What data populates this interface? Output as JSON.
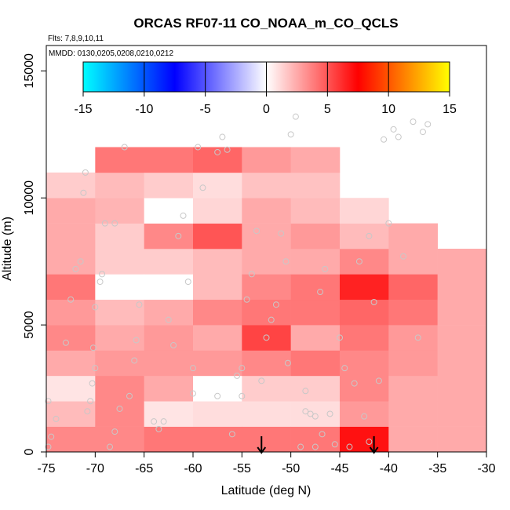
{
  "title": "ORCAS RF07-11 CO_NOAA_m_CO_QCLS",
  "flights_note": "Flts: 7,8,9,10,11",
  "dates_note": "MMDD: 0130,0205,0208,0210,0212",
  "colors": {
    "point": "#c8c8c8",
    "arrow": "#000000"
  },
  "chart_data": {
    "type": "heatmap",
    "title": "ORCAS RF07-11 CO_NOAA_m_CO_QCLS",
    "xlabel": "Latitude (deg N)",
    "ylabel": "Altitude (m)",
    "xlim": [
      -75,
      -30
    ],
    "ylim": [
      0,
      16000
    ],
    "x_ticks": [
      -75,
      -70,
      -65,
      -60,
      -55,
      -50,
      -45,
      -40,
      -35,
      -30
    ],
    "y_ticks": [
      0,
      5000,
      10000,
      15000
    ],
    "colorbar": {
      "min": -15,
      "max": 15,
      "ticks": [
        -15,
        -10,
        -5,
        0,
        5,
        10,
        15
      ],
      "colors": [
        "#00ffff",
        "#0000ff",
        "#ffffff",
        "#ff0000",
        "#ffff00"
      ]
    },
    "grid": false,
    "lat_bins": [
      -75,
      -70,
      -65,
      -60,
      -55,
      -50,
      -45,
      -40,
      -35
    ],
    "alt_bin_size": 1000,
    "cells": [
      [
        0,
        0,
        3.5
      ],
      [
        0,
        1,
        2
      ],
      [
        0,
        2,
        0.8
      ],
      [
        0,
        3,
        2.5
      ],
      [
        0,
        4,
        3.5
      ],
      [
        0,
        5,
        3
      ],
      [
        0,
        6,
        4
      ],
      [
        0,
        7,
        2.5
      ],
      [
        0,
        8,
        2.5
      ],
      [
        0,
        9,
        2.5
      ],
      [
        0,
        10,
        1.5
      ],
      [
        1,
        0,
        3.5
      ],
      [
        1,
        1,
        3.5
      ],
      [
        1,
        2,
        3.5
      ],
      [
        1,
        3,
        3
      ],
      [
        1,
        4,
        2.5
      ],
      [
        1,
        5,
        2
      ],
      [
        1,
        6,
        0
      ],
      [
        1,
        7,
        1.5
      ],
      [
        1,
        8,
        1.5
      ],
      [
        1,
        9,
        2.2
      ],
      [
        1,
        10,
        2
      ],
      [
        1,
        11,
        4
      ],
      [
        2,
        0,
        4
      ],
      [
        2,
        1,
        0.8
      ],
      [
        2,
        2,
        2.5
      ],
      [
        2,
        3,
        3
      ],
      [
        2,
        4,
        3
      ],
      [
        2,
        5,
        2.5
      ],
      [
        2,
        6,
        0
      ],
      [
        2,
        7,
        1.5
      ],
      [
        2,
        8,
        3.5
      ],
      [
        2,
        9,
        0
      ],
      [
        2,
        10,
        1.5
      ],
      [
        2,
        11,
        4
      ],
      [
        3,
        0,
        4
      ],
      [
        3,
        1,
        1
      ],
      [
        3,
        2,
        0
      ],
      [
        3,
        3,
        3
      ],
      [
        3,
        4,
        2.5
      ],
      [
        3,
        5,
        3.5
      ],
      [
        3,
        6,
        2
      ],
      [
        3,
        7,
        2
      ],
      [
        3,
        8,
        5
      ],
      [
        3,
        9,
        1.2
      ],
      [
        3,
        10,
        1
      ],
      [
        3,
        11,
        4.5
      ],
      [
        4,
        0,
        4
      ],
      [
        4,
        1,
        1
      ],
      [
        4,
        2,
        1.5
      ],
      [
        4,
        3,
        3.5
      ],
      [
        4,
        4,
        5.5
      ],
      [
        4,
        5,
        4
      ],
      [
        4,
        6,
        3.5
      ],
      [
        4,
        7,
        2.5
      ],
      [
        4,
        8,
        2.5
      ],
      [
        4,
        9,
        2.5
      ],
      [
        4,
        10,
        1.8
      ],
      [
        4,
        11,
        3
      ],
      [
        5,
        0,
        4
      ],
      [
        5,
        1,
        1
      ],
      [
        5,
        2,
        1.5
      ],
      [
        5,
        3,
        4
      ],
      [
        5,
        4,
        2.5
      ],
      [
        5,
        5,
        4
      ],
      [
        5,
        6,
        4
      ],
      [
        5,
        7,
        2.5
      ],
      [
        5,
        8,
        3
      ],
      [
        5,
        9,
        2
      ],
      [
        5,
        10,
        1.8
      ],
      [
        5,
        11,
        2.5
      ],
      [
        6,
        0,
        7
      ],
      [
        6,
        1,
        3
      ],
      [
        6,
        2,
        3.5
      ],
      [
        6,
        3,
        3.5
      ],
      [
        6,
        4,
        4
      ],
      [
        6,
        5,
        4.5
      ],
      [
        6,
        6,
        6.5
      ],
      [
        6,
        7,
        3.5
      ],
      [
        6,
        8,
        2
      ],
      [
        6,
        9,
        1.2
      ],
      [
        7,
        0,
        2.5
      ],
      [
        7,
        1,
        2.5
      ],
      [
        7,
        2,
        2.5
      ],
      [
        7,
        3,
        3
      ],
      [
        7,
        4,
        3
      ],
      [
        7,
        5,
        4
      ],
      [
        7,
        6,
        4.5
      ],
      [
        7,
        7,
        2.5
      ],
      [
        7,
        8,
        2.5
      ],
      [
        8,
        0,
        2.5
      ],
      [
        8,
        1,
        2.5
      ],
      [
        8,
        2,
        2.5
      ],
      [
        8,
        3,
        2.5
      ],
      [
        8,
        4,
        2.5
      ],
      [
        8,
        5,
        2.5
      ],
      [
        8,
        6,
        2.5
      ],
      [
        8,
        7,
        2.5
      ]
    ],
    "points": [
      [
        -74.8,
        200
      ],
      [
        -74.5,
        600
      ],
      [
        -74,
        1300
      ],
      [
        -74.8,
        2000
      ],
      [
        -73,
        4300
      ],
      [
        -72.5,
        6000
      ],
      [
        -72,
        7200
      ],
      [
        -71.5,
        7500
      ],
      [
        -71.2,
        10200
      ],
      [
        -71,
        11000
      ],
      [
        -70.8,
        1600
      ],
      [
        -70.5,
        2000
      ],
      [
        -70.3,
        2700
      ],
      [
        -70,
        3300
      ],
      [
        -70.2,
        4100
      ],
      [
        -70,
        5700
      ],
      [
        -69.5,
        6700
      ],
      [
        -69.3,
        7000
      ],
      [
        -69,
        9000
      ],
      [
        -68,
        9000
      ],
      [
        -68.5,
        200
      ],
      [
        -68,
        800
      ],
      [
        -67.5,
        1700
      ],
      [
        -67,
        12000
      ],
      [
        -66.5,
        2200
      ],
      [
        -66,
        3600
      ],
      [
        -65.8,
        4400
      ],
      [
        -65.5,
        5800
      ],
      [
        -64,
        1200
      ],
      [
        -63.5,
        900
      ],
      [
        -63,
        1200
      ],
      [
        -62.5,
        5200
      ],
      [
        -62,
        4200
      ],
      [
        -61.5,
        8500
      ],
      [
        -61,
        9300
      ],
      [
        -60.5,
        6700
      ],
      [
        -60,
        2300
      ],
      [
        -60,
        3300
      ],
      [
        -59.5,
        12000
      ],
      [
        -59,
        10400
      ],
      [
        -57.5,
        11800
      ],
      [
        -57,
        12400
      ],
      [
        -56.5,
        11900
      ],
      [
        -56,
        700
      ],
      [
        -55.5,
        3000
      ],
      [
        -55,
        3300
      ],
      [
        -55,
        2200
      ],
      [
        -54.5,
        6000
      ],
      [
        -54,
        7000
      ],
      [
        -53.5,
        8700
      ],
      [
        -53,
        2800
      ],
      [
        -52.5,
        4500
      ],
      [
        -52,
        5200
      ],
      [
        -51.5,
        5800
      ],
      [
        -51,
        8600
      ],
      [
        -50.5,
        7500
      ],
      [
        -50,
        12500
      ],
      [
        -49.5,
        13200
      ],
      [
        -48.5,
        2400
      ],
      [
        -48.5,
        1600
      ],
      [
        -48,
        1500
      ],
      [
        -47.5,
        1400
      ],
      [
        -47,
        6300
      ],
      [
        -46.5,
        7200
      ],
      [
        -46,
        1500
      ],
      [
        -45.5,
        300
      ],
      [
        -45,
        4500
      ],
      [
        -44.5,
        3300
      ],
      [
        -43.5,
        2700
      ],
      [
        -43,
        7500
      ],
      [
        -42.5,
        1400
      ],
      [
        -42,
        8500
      ],
      [
        -41.5,
        5900
      ],
      [
        -41,
        2800
      ],
      [
        -40.5,
        12300
      ],
      [
        -40,
        9000
      ],
      [
        -39.5,
        12700
      ],
      [
        -39,
        12400
      ],
      [
        -38.5,
        7700
      ],
      [
        -37.5,
        13000
      ],
      [
        -37,
        4500
      ],
      [
        -36.5,
        12600
      ],
      [
        -36,
        12900
      ],
      [
        -47.5,
        200
      ],
      [
        -49,
        200
      ],
      [
        -50.3,
        3500
      ],
      [
        -46.8,
        700
      ],
      [
        -44,
        200
      ],
      [
        -42,
        400
      ],
      [
        -57.5,
        2200
      ]
    ],
    "arrows": [
      -53,
      -41.5
    ]
  }
}
